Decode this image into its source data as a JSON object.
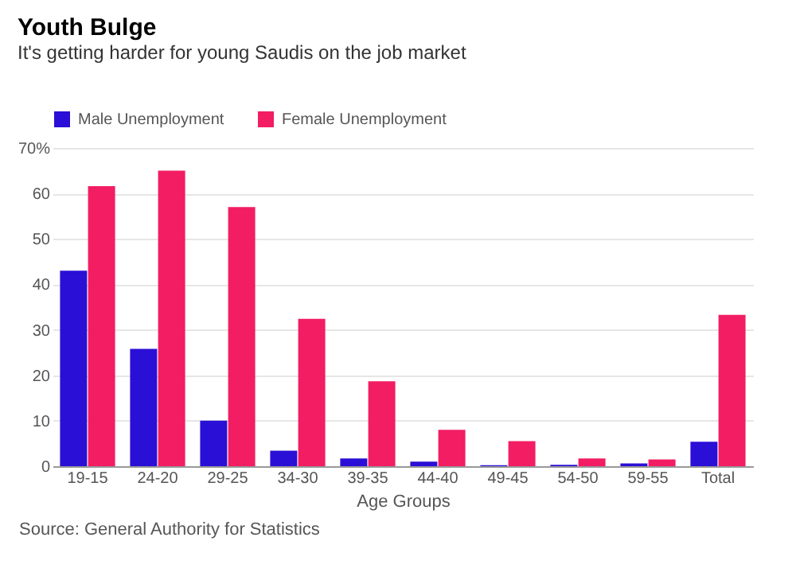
{
  "chart_data": {
    "type": "bar",
    "title": "Youth Bulge",
    "subtitle": "It's getting harder for young Saudis on the job market",
    "xlabel": "Age Groups",
    "categories": [
      "19-15",
      "24-20",
      "29-25",
      "34-30",
      "39-35",
      "44-40",
      "49-45",
      "54-50",
      "59-55",
      "Total"
    ],
    "series": [
      {
        "name": "Male Unemployment",
        "color": "#2a0fd6",
        "values": [
          43,
          25.8,
          10,
          3.4,
          1.7,
          1,
          0.2,
          0.3,
          0.6,
          5.4
        ]
      },
      {
        "name": "Female Unemployment",
        "color": "#f21d63",
        "values": [
          61.6,
          65,
          57,
          32.4,
          18.7,
          8,
          5.5,
          1.7,
          1.5,
          33.3
        ]
      }
    ],
    "ylim": [
      0,
      70
    ],
    "yticks": [
      0,
      10,
      20,
      30,
      40,
      50,
      60,
      {
        "value": 70,
        "label": "70%"
      }
    ],
    "grid": "y",
    "legend": "top left",
    "annotations": [
      "Source: General Authority for Statistics"
    ]
  }
}
